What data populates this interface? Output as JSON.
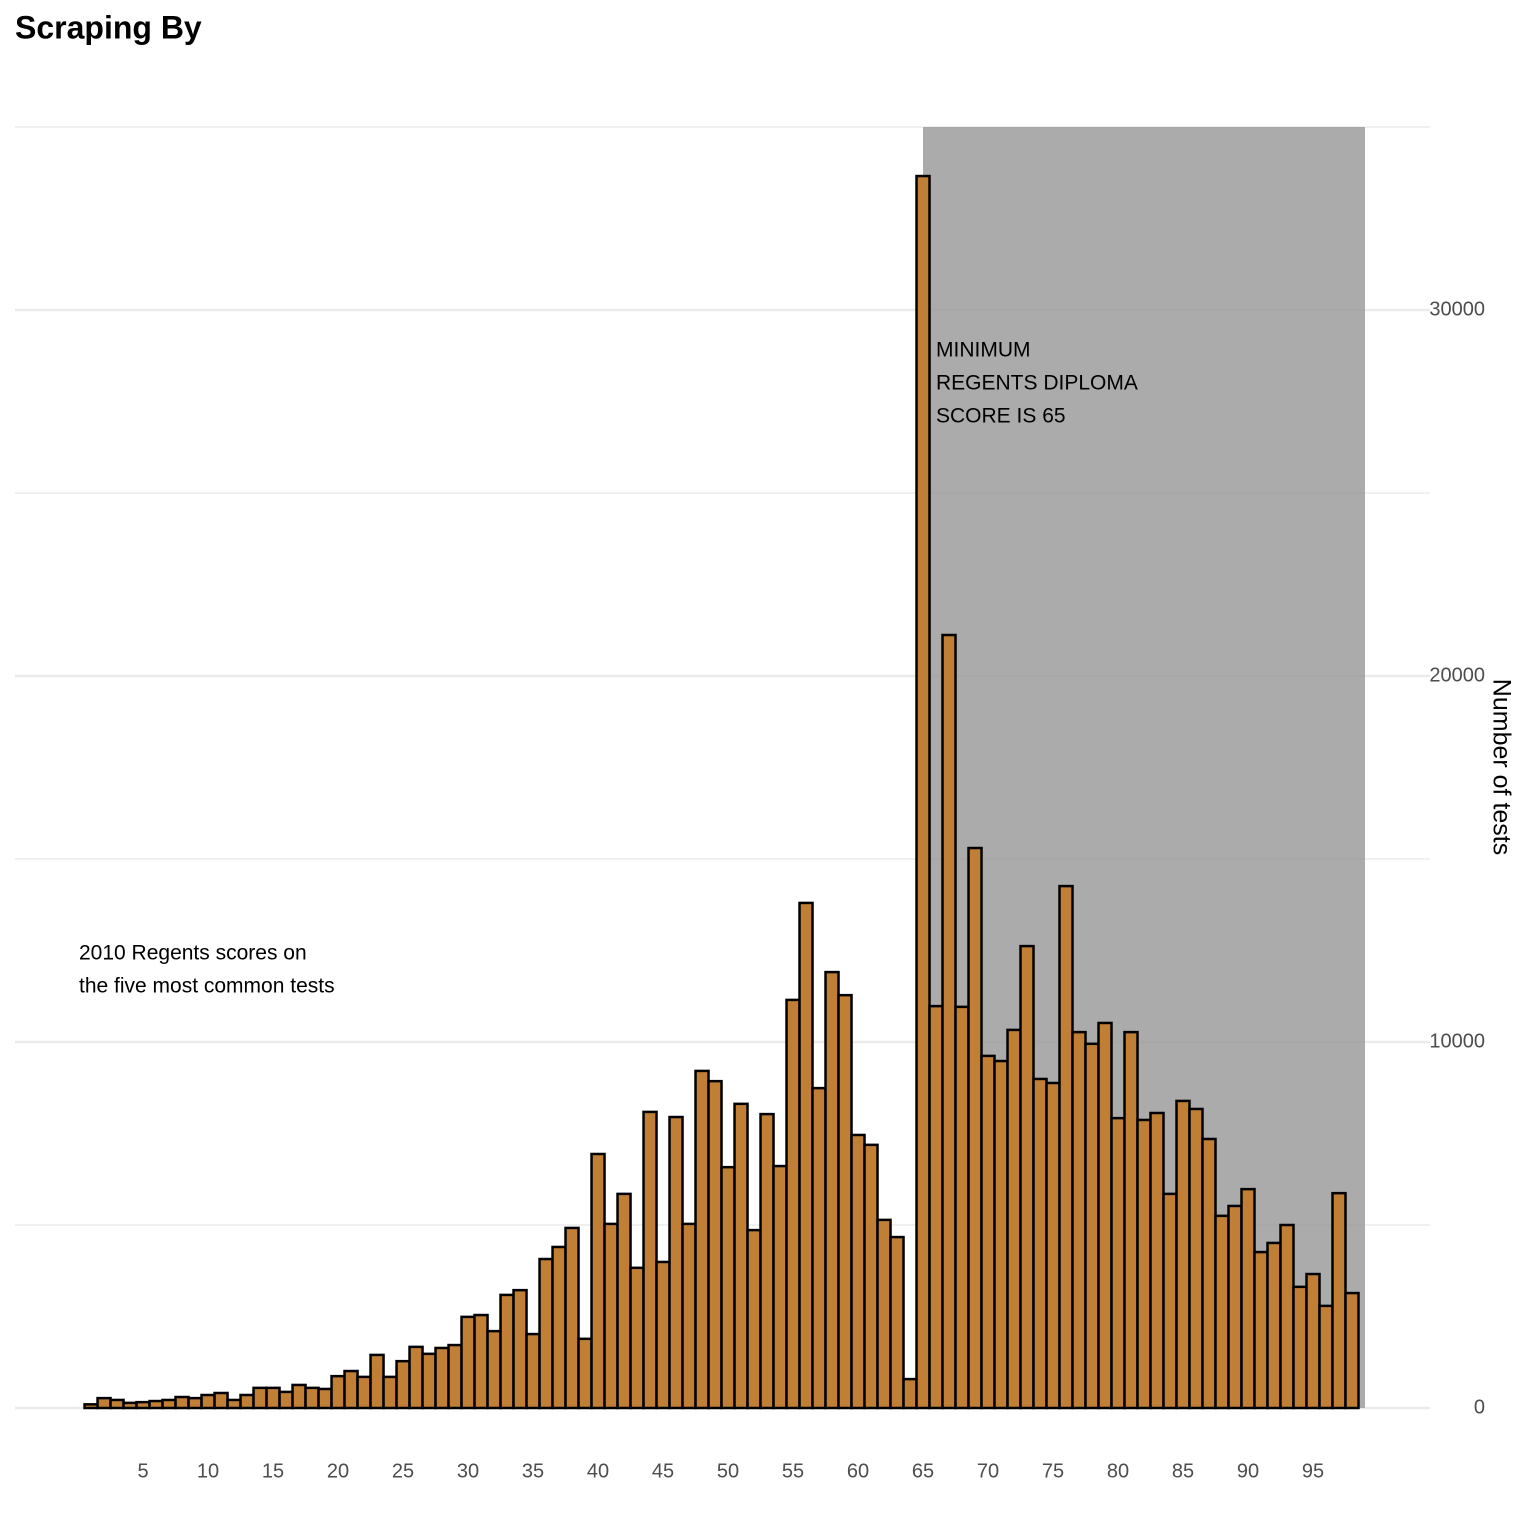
{
  "chart_data": {
    "type": "bar",
    "title": "Scraping By",
    "y_axis_label": "Number of tests",
    "x": [
      1,
      2,
      3,
      4,
      5,
      6,
      7,
      8,
      9,
      10,
      11,
      12,
      13,
      14,
      15,
      16,
      17,
      18,
      19,
      20,
      21,
      22,
      23,
      24,
      25,
      26,
      27,
      28,
      29,
      30,
      31,
      32,
      33,
      34,
      35,
      36,
      37,
      38,
      39,
      40,
      41,
      42,
      43,
      44,
      45,
      46,
      47,
      48,
      49,
      50,
      51,
      52,
      53,
      54,
      55,
      56,
      57,
      58,
      59,
      60,
      61,
      62,
      63,
      64,
      65,
      66,
      67,
      68,
      69,
      70,
      71,
      72,
      73,
      74,
      75,
      76,
      77,
      78,
      79,
      80,
      81,
      82,
      83,
      84,
      85,
      86,
      87,
      88,
      89,
      90,
      91,
      92,
      93,
      94,
      95,
      96,
      97,
      98
    ],
    "values": [
      100,
      270,
      220,
      140,
      160,
      190,
      220,
      300,
      270,
      355,
      410,
      220,
      355,
      550,
      550,
      440,
      630,
      550,
      520,
      870,
      1010,
      850,
      1450,
      850,
      1280,
      1670,
      1480,
      1640,
      1720,
      2490,
      2540,
      2100,
      3090,
      3220,
      2020,
      4070,
      4400,
      4920,
      1890,
      6940,
      5030,
      5850,
      3830,
      8090,
      3990,
      7950,
      5030,
      9210,
      8930,
      6580,
      8310,
      4860,
      8030,
      6610,
      11150,
      13800,
      8740,
      11910,
      11280,
      7460,
      7190,
      5140,
      4670,
      790,
      33660,
      10980,
      21120,
      10960,
      15300,
      9620,
      9480,
      10330,
      12620,
      8990,
      8880,
      14260,
      10270,
      9950,
      10520,
      7920,
      10270,
      7870,
      8060,
      5850,
      8390,
      8170,
      7350,
      5250,
      5520,
      5980,
      4260,
      4510,
      5000,
      3310,
      3660,
      2790,
      5870,
      3140
    ],
    "color": "#c17f35",
    "highlight_range": [
      65,
      99
    ],
    "xlim": [
      -4.85,
      104
    ],
    "xticks": [
      5,
      10,
      15,
      20,
      25,
      30,
      35,
      40,
      45,
      50,
      55,
      60,
      65,
      70,
      75,
      80,
      85,
      90,
      95
    ],
    "ylim": [
      0,
      35000
    ],
    "yticks": [
      0,
      10000,
      20000,
      30000
    ],
    "grid": true,
    "annotations": [
      {
        "lines": [
          "MINIMUM",
          "REGENTS DIPLOMA",
          "SCORE IS 65"
        ]
      },
      {
        "lines": [
          "2010 Regents scores on",
          "the five most common tests"
        ]
      }
    ]
  }
}
